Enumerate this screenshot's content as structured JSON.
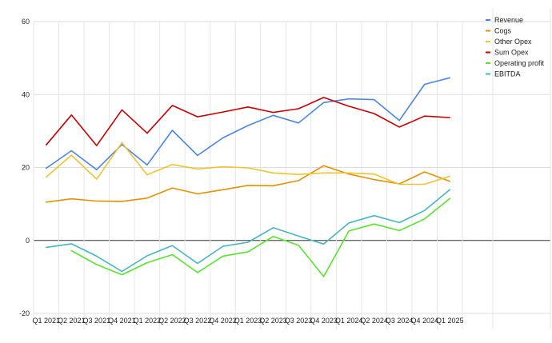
{
  "chart_data": {
    "type": "line",
    "title": "",
    "xlabel": "",
    "ylabel": "",
    "ylim": [
      -20,
      60
    ],
    "yticks": [
      -20,
      0,
      20,
      40,
      60
    ],
    "grid": true,
    "legend_position": "top-right",
    "categories": [
      "Q1 2021",
      "Q2 2021",
      "Q3 2021",
      "Q4 2021",
      "Q1 2022",
      "Q2 2022",
      "Q3 2022",
      "Q4 2022",
      "Q1 2023",
      "Q2 2023",
      "Q3 2023",
      "Q4 2023",
      "Q1 2024",
      "Q2 2024",
      "Q3 2024",
      "Q4 2024",
      "Q1 2025"
    ],
    "series": [
      {
        "name": "Revenue",
        "color": "#4a86e8",
        "values": [
          19.8,
          24.6,
          19.4,
          26.3,
          20.7,
          30.2,
          23.3,
          28.1,
          31.5,
          34.3,
          32.2,
          37.8,
          38.8,
          38.6,
          32.9,
          42.8,
          44.6
        ]
      },
      {
        "name": "Cogs",
        "color": "#e69100",
        "values": [
          10.5,
          11.4,
          10.8,
          10.7,
          11.6,
          14.4,
          12.8,
          13.9,
          15.1,
          15.0,
          16.4,
          20.5,
          18.2,
          16.7,
          15.5,
          18.8,
          16.2
        ]
      },
      {
        "name": "Other Opex",
        "color": "#f1c232",
        "values": [
          17.4,
          23.4,
          16.8,
          26.8,
          18.0,
          20.8,
          19.6,
          20.2,
          19.9,
          18.5,
          18.1,
          18.5,
          18.5,
          18.2,
          15.4,
          15.4,
          17.6
        ]
      },
      {
        "name": "Sum Opex",
        "color": "#cc0000",
        "values": [
          26.2,
          34.4,
          26.0,
          35.8,
          29.4,
          37.0,
          33.9,
          35.2,
          36.6,
          35.1,
          36.1,
          39.2,
          36.8,
          34.8,
          31.1,
          34.1,
          33.7
        ]
      },
      {
        "name": "Operating profit",
        "color": "#55e62a",
        "values": [
          null,
          -2.8,
          -6.6,
          -9.4,
          -6.1,
          -3.9,
          -8.8,
          -4.3,
          -3.1,
          1.1,
          -1.3,
          -9.9,
          2.6,
          4.5,
          2.7,
          5.9,
          11.5
        ]
      },
      {
        "name": "EBITDA",
        "color": "#45b6c2",
        "values": [
          -1.9,
          -0.9,
          -4.3,
          -8.5,
          -4.2,
          -1.4,
          -6.3,
          -1.6,
          -0.5,
          3.5,
          1.2,
          -1.0,
          4.8,
          6.8,
          4.9,
          8.2,
          13.9
        ]
      }
    ]
  }
}
